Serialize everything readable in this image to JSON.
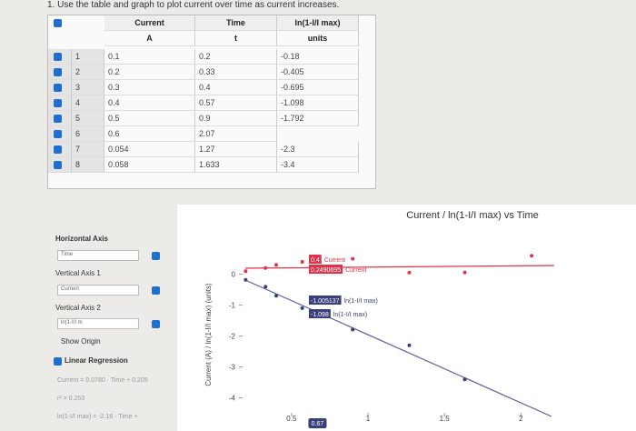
{
  "question": "1. Use the table and graph to plot current over time as current increases.",
  "table": {
    "headers": [
      "Current",
      "Time",
      "ln(1-I/I max)"
    ],
    "units": [
      "A",
      "t",
      "units"
    ],
    "rows": [
      [
        1,
        0.1,
        0.2,
        -0.18
      ],
      [
        2,
        0.2,
        0.33,
        -0.405
      ],
      [
        3,
        0.3,
        0.4,
        -0.695
      ],
      [
        4,
        0.4,
        0.57,
        -1.098
      ],
      [
        5,
        0.5,
        0.9,
        -1.792
      ],
      [
        6,
        0.6,
        2.07,
        null
      ],
      [
        7,
        0.054,
        1.27,
        -2.3
      ],
      [
        8,
        0.058,
        1.633,
        -3.4
      ]
    ]
  },
  "graph": {
    "title": "Current / ln(1-I/I max) vs Time",
    "y_axis_label": "Current (A) / ln(1-I/I max) (units)",
    "xlim": [
      0.18,
      2.2
    ],
    "ylim": [
      -4.6,
      0.9
    ],
    "xticks": [
      0.5,
      1,
      1.5,
      2
    ],
    "yticks": [
      0,
      -1,
      -2,
      -3,
      -4
    ],
    "cursor": 0.67,
    "hover_labels": [
      {
        "value": 0.4,
        "name": "Current"
      },
      {
        "value": 0.2490695,
        "name": "Current"
      },
      {
        "value": -1.005137,
        "name": "ln(1-I/I max)"
      },
      {
        "value": -1.098,
        "name": "ln(1-I/I max)"
      }
    ]
  },
  "panel": {
    "horizontal_axis": "Horizontal Axis",
    "horizontal_value": "Time",
    "vertical_axis_1": "Vertical Axis 1",
    "vertical_value_1": "Current",
    "vertical_axis_2": "Vertical Axis 2",
    "vertical_value_2": "ln(1-I/I m",
    "show_origin": "Show Origin",
    "linear_regression": "Linear Regression",
    "fits": [
      "Current = 0.0780 · Time + 0.205",
      "r² = 0.253",
      "ln(1-I/I max) = -2.16 · Time +"
    ]
  }
}
